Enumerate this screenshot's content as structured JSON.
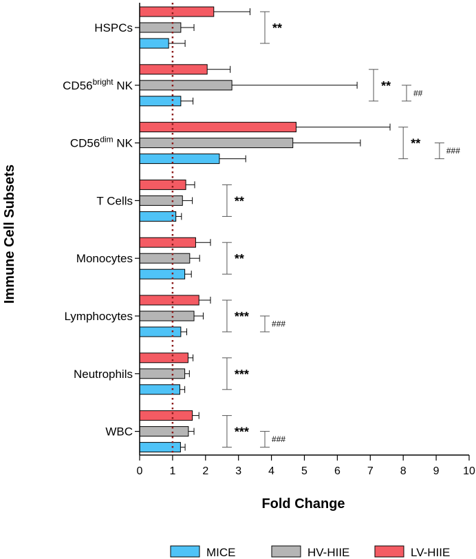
{
  "chart_data": {
    "type": "bar",
    "orientation": "horizontal",
    "xlabel": "Fold Change",
    "ylabel": "Immune Cell Subsets",
    "xlim": [
      0,
      10
    ],
    "xticks": [
      "0",
      "1",
      "2",
      "3",
      "4",
      "5",
      "6",
      "7",
      "8",
      "9",
      "10"
    ],
    "reference_line": 1,
    "categories": [
      {
        "name": "HSPCs"
      },
      {
        "name": "CD56",
        "sup": "bright",
        "suffix": " NK"
      },
      {
        "name": "CD56",
        "sup": "dim",
        "suffix": " NK"
      },
      {
        "name": "T Cells"
      },
      {
        "name": "Monocytes"
      },
      {
        "name": "Lymphocytes"
      },
      {
        "name": "Neutrophils"
      },
      {
        "name": "WBC"
      }
    ],
    "series": [
      {
        "name": "LV-HIIE",
        "color": "#f45b63",
        "values": [
          2.25,
          2.05,
          4.75,
          1.4,
          1.7,
          1.8,
          1.47,
          1.6
        ],
        "errors": [
          1.1,
          0.7,
          2.85,
          0.27,
          0.45,
          0.35,
          0.15,
          0.2
        ]
      },
      {
        "name": "HV-HIIE",
        "color": "#b5b5b5",
        "values": [
          1.25,
          2.8,
          4.65,
          1.3,
          1.52,
          1.65,
          1.37,
          1.48
        ],
        "errors": [
          0.4,
          3.8,
          2.05,
          0.3,
          0.3,
          0.28,
          0.14,
          0.17
        ]
      },
      {
        "name": "MICE",
        "color": "#4fc3f7",
        "values": [
          0.88,
          1.25,
          2.42,
          1.1,
          1.37,
          1.25,
          1.22,
          1.24
        ],
        "errors": [
          0.5,
          0.37,
          0.8,
          0.17,
          0.2,
          0.18,
          0.15,
          0.14
        ]
      }
    ],
    "legend": [
      "MICE",
      "HV-HIIE",
      "LV-HIIE"
    ],
    "significance": [
      {
        "category": "HSPCs",
        "star": "**",
        "star_x": 3.8,
        "hash": "",
        "hash_x": null
      },
      {
        "category": "CD56 bright NK",
        "star": "**",
        "star_x": 7.1,
        "hash": "##",
        "hash_x": 8.1
      },
      {
        "category": "CD56 dim NK",
        "star": "**",
        "star_x": 8.0,
        "hash": "###",
        "hash_x": 9.1
      },
      {
        "category": "T Cells",
        "star": "**",
        "star_x": 2.65,
        "hash": "",
        "hash_x": null
      },
      {
        "category": "Monocytes",
        "star": "**",
        "star_x": 2.65,
        "hash": "",
        "hash_x": null
      },
      {
        "category": "Lymphocytes",
        "star": "***",
        "star_x": 2.65,
        "hash": "###",
        "hash_x": 3.8
      },
      {
        "category": "Neutrophils",
        "star": "***",
        "star_x": 2.65,
        "hash": "",
        "hash_x": null
      },
      {
        "category": "WBC",
        "star": "***",
        "star_x": 2.65,
        "hash": "###",
        "hash_x": 3.8
      }
    ]
  }
}
